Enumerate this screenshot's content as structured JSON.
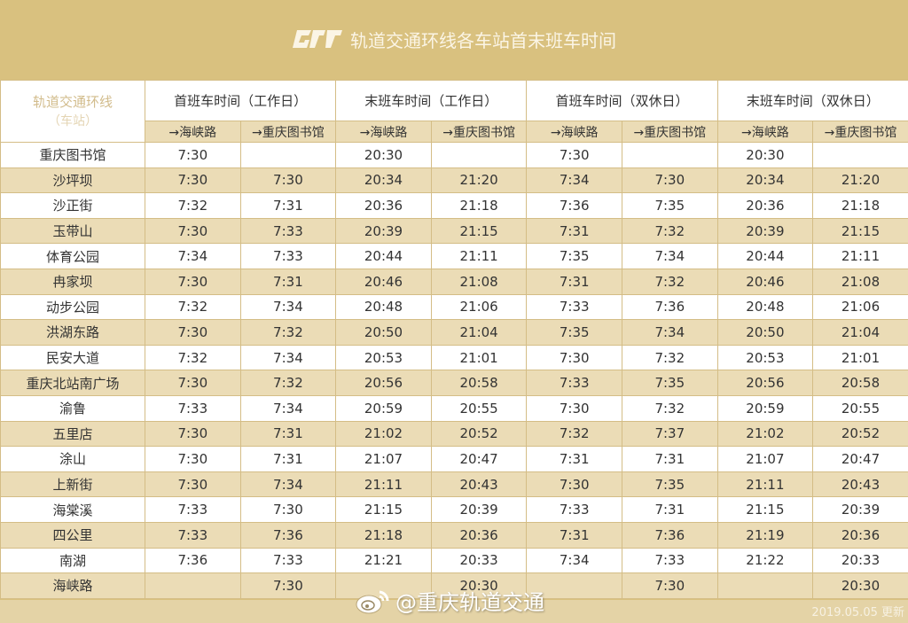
{
  "banner": {
    "logo": "crt-logo-icon",
    "title": "轨道交通环线各车站首末班车时间"
  },
  "table": {
    "station_header": {
      "line": "轨道交通环线",
      "sub": "（车站）"
    },
    "group_headers": [
      "首班车时间（工作日）",
      "末班车时间（工作日）",
      "首班车时间（双休日）",
      "末班车时间（双休日）"
    ],
    "direction_headers": [
      "→海峡路",
      "→重庆图书馆",
      "→海峡路",
      "→重庆图书馆",
      "→海峡路",
      "→重庆图书馆",
      "→海峡路",
      "→重庆图书馆"
    ],
    "rows": [
      {
        "station": "重庆图书馆",
        "times": [
          "7:30",
          "",
          "20:30",
          "",
          "7:30",
          "",
          "20:30",
          ""
        ]
      },
      {
        "station": "沙坪坝",
        "times": [
          "7:30",
          "7:30",
          "20:34",
          "21:20",
          "7:34",
          "7:30",
          "20:34",
          "21:20"
        ]
      },
      {
        "station": "沙正街",
        "times": [
          "7:32",
          "7:31",
          "20:36",
          "21:18",
          "7:36",
          "7:35",
          "20:36",
          "21:18"
        ]
      },
      {
        "station": "玉带山",
        "times": [
          "7:30",
          "7:33",
          "20:39",
          "21:15",
          "7:31",
          "7:32",
          "20:39",
          "21:15"
        ]
      },
      {
        "station": "体育公园",
        "times": [
          "7:34",
          "7:33",
          "20:44",
          "21:11",
          "7:35",
          "7:34",
          "20:44",
          "21:11"
        ]
      },
      {
        "station": "冉家坝",
        "times": [
          "7:30",
          "7:31",
          "20:46",
          "21:08",
          "7:31",
          "7:32",
          "20:46",
          "21:08"
        ]
      },
      {
        "station": "动步公园",
        "times": [
          "7:32",
          "7:34",
          "20:48",
          "21:06",
          "7:33",
          "7:36",
          "20:48",
          "21:06"
        ]
      },
      {
        "station": "洪湖东路",
        "times": [
          "7:30",
          "7:32",
          "20:50",
          "21:04",
          "7:35",
          "7:34",
          "20:50",
          "21:04"
        ]
      },
      {
        "station": "民安大道",
        "times": [
          "7:32",
          "7:34",
          "20:53",
          "21:01",
          "7:30",
          "7:32",
          "20:53",
          "21:01"
        ]
      },
      {
        "station": "重庆北站南广场",
        "times": [
          "7:30",
          "7:32",
          "20:56",
          "20:58",
          "7:33",
          "7:35",
          "20:56",
          "20:58"
        ]
      },
      {
        "station": "渝鲁",
        "times": [
          "7:33",
          "7:34",
          "20:59",
          "20:55",
          "7:30",
          "7:32",
          "20:59",
          "20:55"
        ]
      },
      {
        "station": "五里店",
        "times": [
          "7:30",
          "7:31",
          "21:02",
          "20:52",
          "7:32",
          "7:37",
          "21:02",
          "20:52"
        ]
      },
      {
        "station": "涂山",
        "times": [
          "7:30",
          "7:31",
          "21:07",
          "20:47",
          "7:31",
          "7:31",
          "21:07",
          "20:47"
        ]
      },
      {
        "station": "上新街",
        "times": [
          "7:30",
          "7:34",
          "21:11",
          "20:43",
          "7:30",
          "7:35",
          "21:11",
          "20:43"
        ]
      },
      {
        "station": "海棠溪",
        "times": [
          "7:33",
          "7:30",
          "21:15",
          "20:39",
          "7:33",
          "7:31",
          "21:15",
          "20:39"
        ]
      },
      {
        "station": "四公里",
        "times": [
          "7:33",
          "7:36",
          "21:18",
          "20:36",
          "7:31",
          "7:36",
          "21:19",
          "20:36"
        ]
      },
      {
        "station": "南湖",
        "times": [
          "7:36",
          "7:33",
          "21:21",
          "20:33",
          "7:34",
          "7:33",
          "21:22",
          "20:33"
        ]
      },
      {
        "station": "海峡路",
        "times": [
          "",
          "7:30",
          "",
          "20:30",
          "",
          "7:30",
          "",
          "20:30"
        ]
      }
    ]
  },
  "watermark": {
    "icon": "weibo-icon",
    "text": "@重庆轨道交通"
  },
  "footer": {
    "updated": "2019.05.05 更新"
  },
  "colors": {
    "banner": "#d9c17f",
    "row_alt": "#ebdcb6",
    "row_plain": "#ffffff",
    "border": "#d4bd86"
  }
}
